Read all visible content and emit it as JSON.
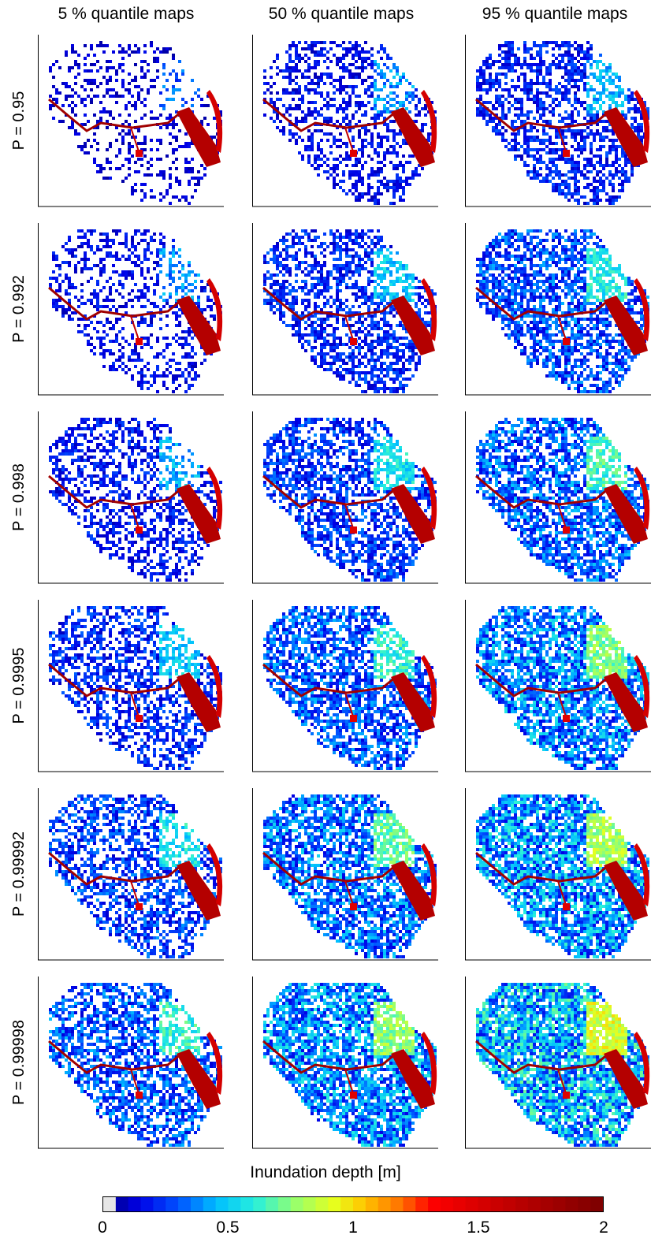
{
  "chart_data": {
    "type": "heatmap",
    "columns": [
      "5 % quantile maps",
      "50 % quantile maps",
      "95 % quantile maps"
    ],
    "rows": [
      "P = 0.95",
      "P = 0.992",
      "P = 0.998",
      "P = 0.9995",
      "P = 0.99992",
      "P = 0.99998"
    ],
    "colorbar": {
      "label": "Inundation depth [m]",
      "range": [
        0,
        2
      ],
      "ticks": [
        "0",
        "0.5",
        "1",
        "1.5",
        "2"
      ],
      "colormap": "jet-like (white, dark blue, blue, cyan, green, yellow, orange, red, dark red)"
    },
    "panels_flooded_fraction_estimate": [
      [
        0.25,
        0.4,
        0.55
      ],
      [
        0.35,
        0.55,
        0.65
      ],
      [
        0.45,
        0.6,
        0.7
      ],
      [
        0.5,
        0.65,
        0.75
      ],
      [
        0.55,
        0.72,
        0.8
      ],
      [
        0.6,
        0.78,
        0.85
      ]
    ],
    "panels_mean_depth_level_estimate": [
      [
        0.1,
        0.15,
        0.2
      ],
      [
        0.15,
        0.22,
        0.28
      ],
      [
        0.18,
        0.25,
        0.32
      ],
      [
        0.22,
        0.3,
        0.38
      ],
      [
        0.26,
        0.35,
        0.42
      ],
      [
        0.3,
        0.4,
        0.48
      ]
    ]
  }
}
